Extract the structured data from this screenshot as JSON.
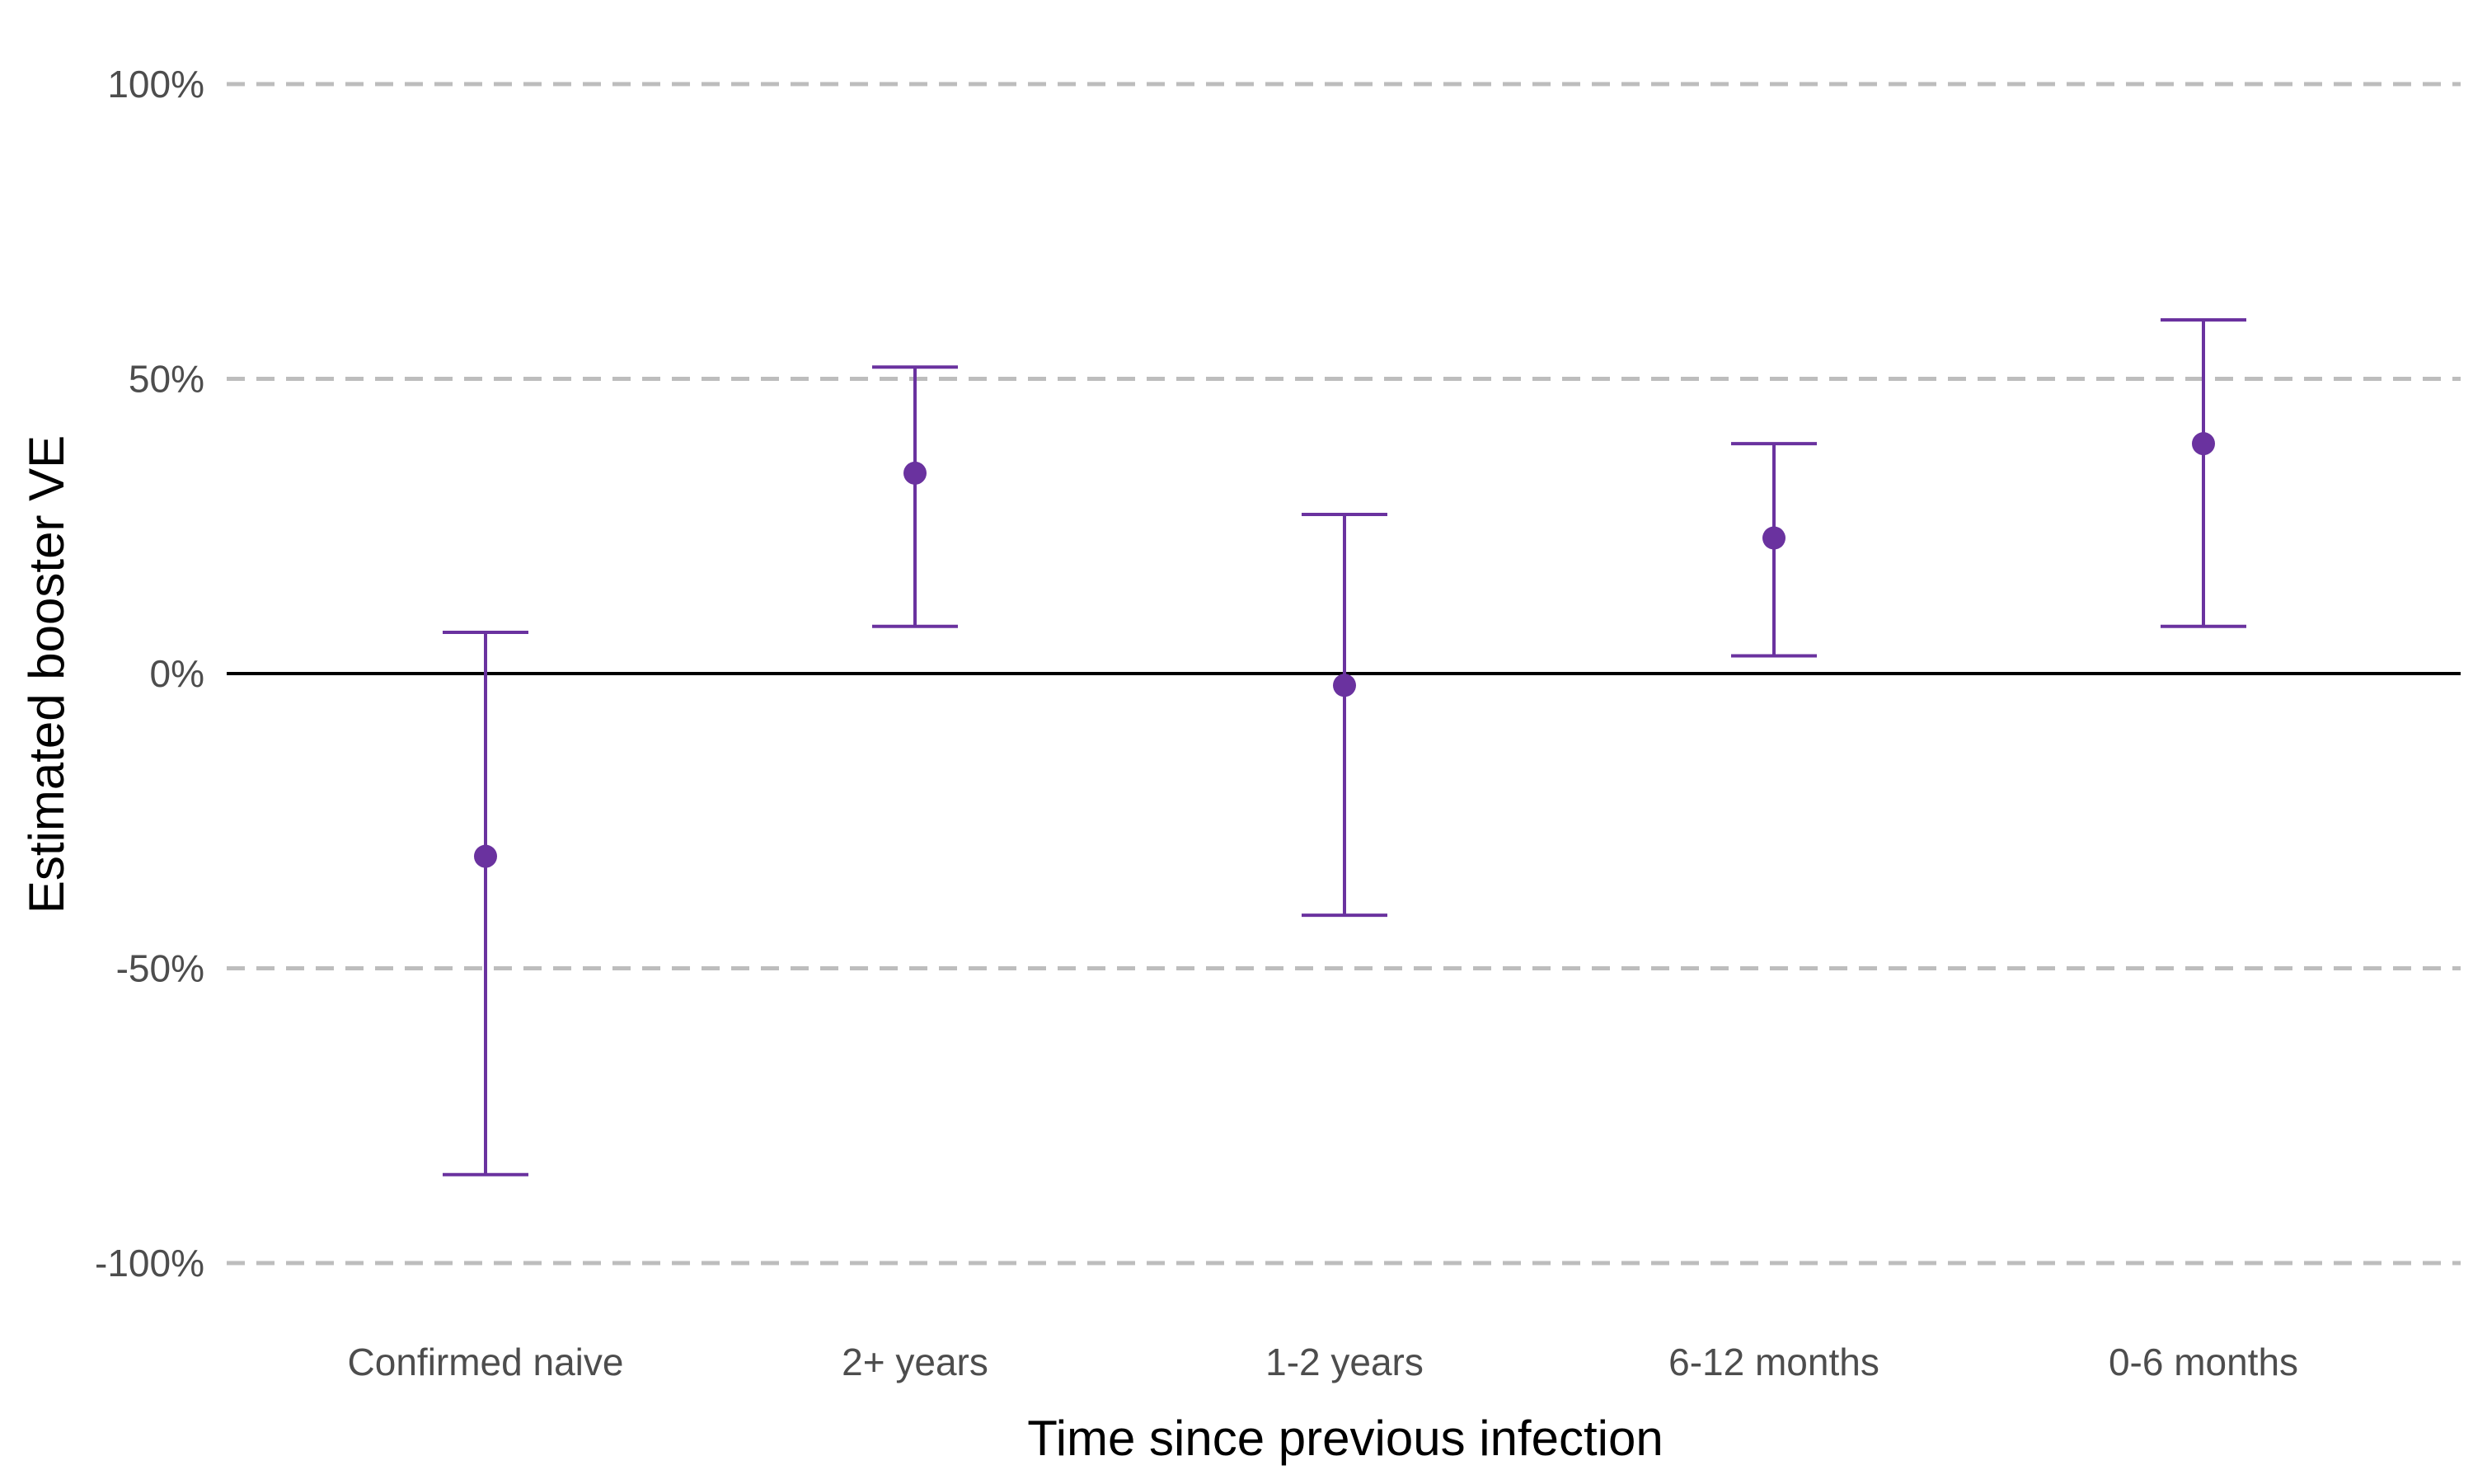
{
  "chart_data": {
    "type": "scatter",
    "subtype": "point-with-error-bars",
    "title": "",
    "xlabel": "Time since previous infection",
    "ylabel": "Estimated booster VE",
    "categories": [
      "Confirmed naive",
      "2+ years",
      "1-2 years",
      "6-12 months",
      "0-6 months"
    ],
    "series": [
      {
        "values": [
          -31,
          34,
          -2,
          23,
          39
        ],
        "lower": [
          -85,
          8,
          -41,
          3,
          8
        ],
        "upper": [
          7,
          52,
          27,
          39,
          60
        ]
      }
    ],
    "ylim": [
      -100,
      100
    ],
    "yticks": [
      -100,
      -50,
      0,
      50,
      100
    ],
    "ytick_labels": [
      "-100%",
      "-50%",
      "0%",
      "50%",
      "100%"
    ],
    "grid": "horizontal dashed",
    "reference_line": 0,
    "legend": "none",
    "colors": {
      "point": "#6a329f",
      "grid": "#bdbdbd",
      "reference": "#000000",
      "tick_text": "#4d4d4d"
    }
  }
}
